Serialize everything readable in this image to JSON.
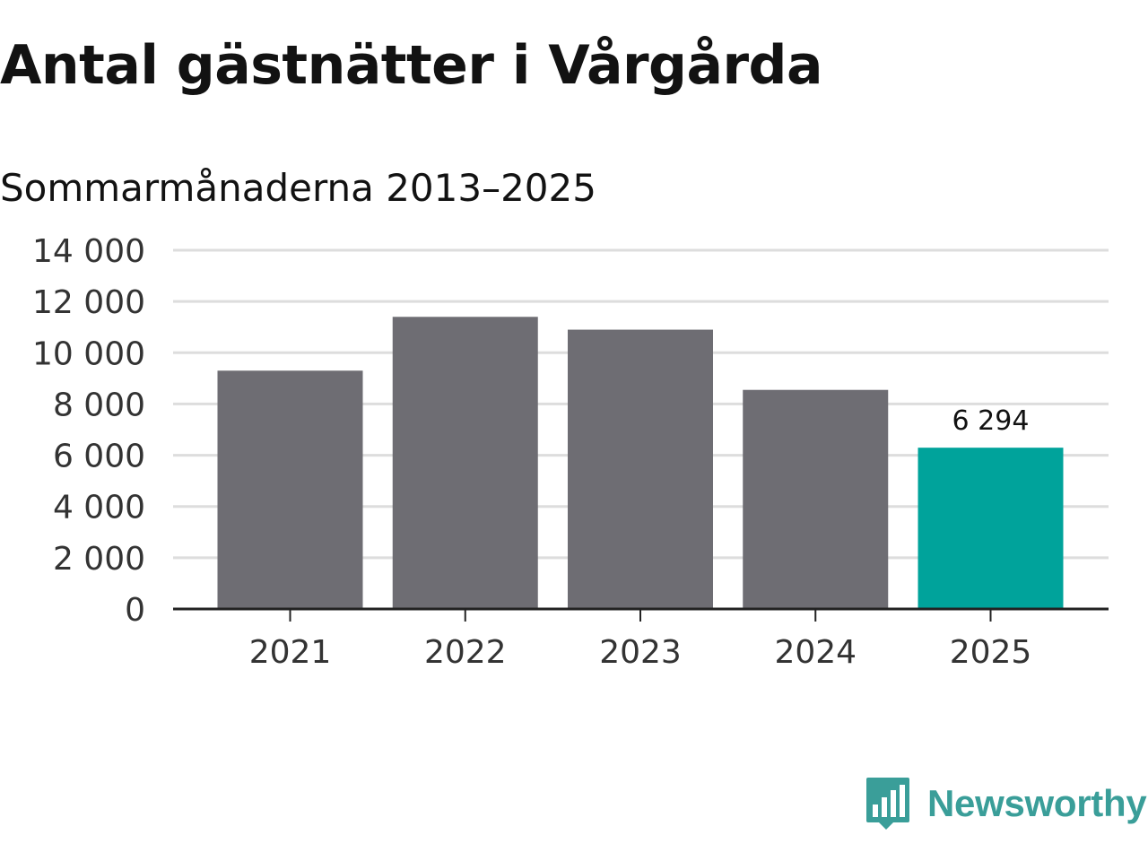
{
  "title": "Antal gästnätter i Vårgårda",
  "subtitle": "Sommarmånaderna 2013–2025",
  "brand": {
    "name": "Newsworthy",
    "logo_icon": "bar-chart-speech-bubble-icon",
    "color": "#3a9e99"
  },
  "colors": {
    "bar": "#6e6d73",
    "highlight": "#00a39b",
    "grid": "#dddddd",
    "axis": "#222222",
    "text": "#333333"
  },
  "chart_data": {
    "type": "bar",
    "title": "Antal gästnätter i Vårgårda",
    "subtitle": "Sommarmånaderna 2013–2025",
    "categories": [
      "2021",
      "2022",
      "2023",
      "2024",
      "2025"
    ],
    "values": [
      9300,
      11400,
      10900,
      8550,
      6294
    ],
    "highlight_index": 4,
    "data_labels": [
      "",
      "",
      "",
      "",
      "6 294"
    ],
    "ylim": [
      0,
      14000
    ],
    "yticks": [
      0,
      2000,
      4000,
      6000,
      8000,
      10000,
      12000,
      14000
    ],
    "ytick_labels": [
      "0",
      "2 000",
      "4 000",
      "6 000",
      "8 000",
      "10 000",
      "12 000",
      "14 000"
    ],
    "xlabel": "",
    "ylabel": "",
    "grid": true,
    "legend": "none"
  }
}
